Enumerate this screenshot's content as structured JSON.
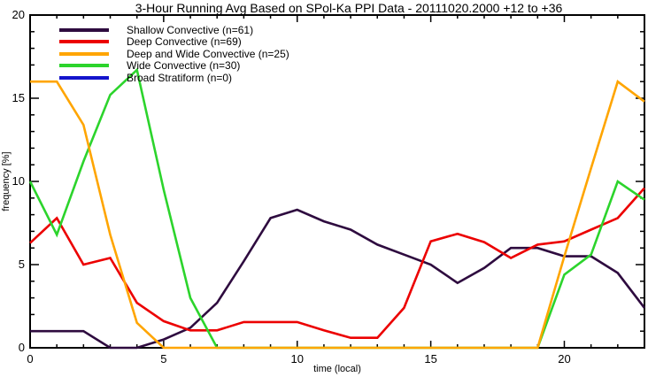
{
  "chart_data": {
    "type": "line",
    "title": "3-Hour Running Avg Based on SPol-Ka PPI Data - 20111020.2000 +12 to +36",
    "xlabel": "time (local)",
    "ylabel": "frequency [%]",
    "xlim": [
      0,
      23
    ],
    "ylim": [
      0,
      20
    ],
    "x_major_ticks": [
      0,
      5,
      10,
      15,
      20
    ],
    "y_major_ticks": [
      0,
      5,
      10,
      15,
      20
    ],
    "minor_tick_interval": 1,
    "grid": false,
    "legend_position": "top-left-inside",
    "axis_color": "#000000",
    "x": [
      0,
      1,
      2,
      3,
      4,
      5,
      6,
      7,
      8,
      9,
      10,
      11,
      12,
      13,
      14,
      15,
      16,
      17,
      18,
      19,
      20,
      21,
      22,
      23
    ],
    "series": [
      {
        "name": "Shallow Convective (n=61)",
        "color": "#2e0b3f",
        "values": [
          1.0,
          1.0,
          1.0,
          0.0,
          0.0,
          0.5,
          1.2,
          2.7,
          5.2,
          7.8,
          8.3,
          7.6,
          7.1,
          6.2,
          5.6,
          5.0,
          3.9,
          4.8,
          6.0,
          6.0,
          5.5,
          5.5,
          4.5,
          2.4
        ]
      },
      {
        "name": "Deep Convective (n=69)",
        "color": "#ec0000",
        "values": [
          6.3,
          7.8,
          5.0,
          5.4,
          2.7,
          1.6,
          1.05,
          1.05,
          1.55,
          1.55,
          1.55,
          1.05,
          0.6,
          0.6,
          2.4,
          6.4,
          6.85,
          6.35,
          5.4,
          6.2,
          6.4,
          7.1,
          7.8,
          9.6
        ]
      },
      {
        "name": "Wide Convective (n=30)",
        "color": "#2cd42c",
        "values": [
          10.0,
          6.8,
          11.2,
          15.2,
          16.7,
          9.5,
          3.0,
          0.0,
          0.0,
          0.0,
          0.0,
          0.0,
          0.0,
          0.0,
          0.0,
          0.0,
          0.0,
          0.0,
          0.0,
          0.0,
          4.4,
          5.6,
          10.0,
          8.9
        ]
      },
      {
        "name": "Deep and Wide Convective (n=25)",
        "color": "#ffa500",
        "values": [
          16.0,
          16.0,
          13.4,
          6.8,
          1.5,
          0.0,
          0.0,
          0.0,
          0.0,
          0.0,
          0.0,
          0.0,
          0.0,
          0.0,
          0.0,
          0.0,
          0.0,
          0.0,
          0.0,
          0.0,
          5.5,
          10.8,
          16.0,
          14.8
        ]
      },
      {
        "name": "Broad Stratiform (n=0)",
        "color": "#1414cc",
        "values": []
      }
    ],
    "legend_order": [
      "Shallow Convective (n=61)",
      "Deep Convective (n=69)",
      "Deep and Wide Convective (n=25)",
      "Wide Convective (n=30)",
      "Broad Stratiform (n=0)"
    ]
  }
}
